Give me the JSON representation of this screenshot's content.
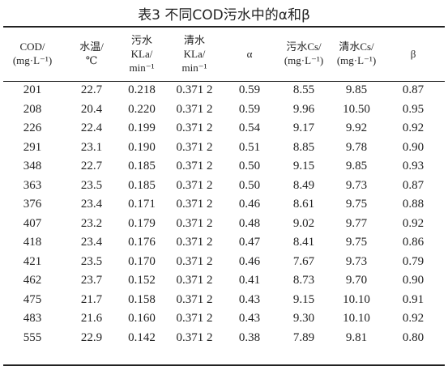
{
  "title": "表3 不同COD污水中的α和β",
  "table": {
    "header": [
      [
        "COD/",
        "(mg·L⁻¹)"
      ],
      [
        "水温/",
        "℃"
      ],
      [
        "污水",
        "KLa/",
        "min⁻¹"
      ],
      [
        "清水",
        "KLa/",
        "min⁻¹"
      ],
      [
        "α"
      ],
      [
        "污水Cs/",
        "(mg·L⁻¹)"
      ],
      [
        "清水Cs/",
        "(mg·L⁻¹)"
      ],
      [
        "β"
      ]
    ],
    "rows": [
      [
        "201",
        "22.7",
        "0.218",
        "0.371 2",
        "0.59",
        "8.55",
        "9.85",
        "0.87"
      ],
      [
        "208",
        "20.4",
        "0.220",
        "0.371 2",
        "0.59",
        "9.96",
        "10.50",
        "0.95"
      ],
      [
        "226",
        "22.4",
        "0.199",
        "0.371 2",
        "0.54",
        "9.17",
        "9.92",
        "0.92"
      ],
      [
        "291",
        "23.1",
        "0.190",
        "0.371 2",
        "0.51",
        "8.85",
        "9.78",
        "0.90"
      ],
      [
        "348",
        "22.7",
        "0.185",
        "0.371 2",
        "0.50",
        "9.15",
        "9.85",
        "0.93"
      ],
      [
        "363",
        "23.5",
        "0.185",
        "0.371 2",
        "0.50",
        "8.49",
        "9.73",
        "0.87"
      ],
      [
        "376",
        "23.4",
        "0.171",
        "0.371 2",
        "0.46",
        "8.61",
        "9.75",
        "0.88"
      ],
      [
        "407",
        "23.2",
        "0.179",
        "0.371 2",
        "0.48",
        "9.02",
        "9.77",
        "0.92"
      ],
      [
        "418",
        "23.4",
        "0.176",
        "0.371 2",
        "0.47",
        "8.41",
        "9.75",
        "0.86"
      ],
      [
        "421",
        "23.5",
        "0.170",
        "0.371 2",
        "0.46",
        "7.67",
        "9.73",
        "0.79"
      ],
      [
        "462",
        "23.7",
        "0.152",
        "0.371 2",
        "0.41",
        "8.73",
        "9.70",
        "0.90"
      ],
      [
        "475",
        "21.7",
        "0.158",
        "0.371 2",
        "0.43",
        "9.15",
        "10.10",
        "0.91"
      ],
      [
        "483",
        "21.6",
        "0.160",
        "0.371 2",
        "0.43",
        "9.30",
        "10.10",
        "0.92"
      ],
      [
        "555",
        "22.9",
        "0.142",
        "0.371 2",
        "0.38",
        "7.89",
        "9.81",
        "0.80"
      ]
    ]
  }
}
